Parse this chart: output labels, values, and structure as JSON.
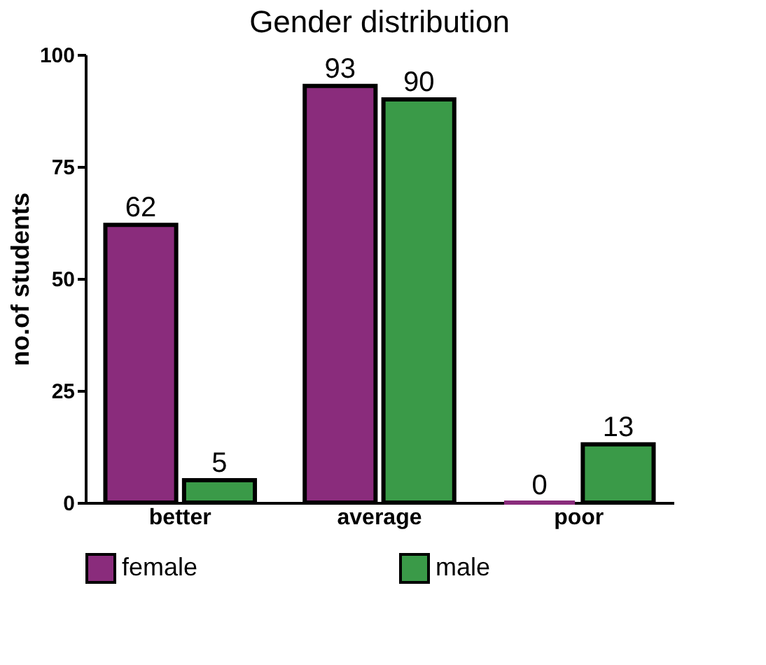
{
  "chart_data": {
    "type": "bar",
    "title": "Gender distribution",
    "ylabel": "no.of students",
    "categories": [
      "better",
      "average",
      "poor"
    ],
    "series": [
      {
        "name": "female",
        "color": "#8a2c7c",
        "values": [
          62,
          93,
          0
        ]
      },
      {
        "name": "male",
        "color": "#3a9a48",
        "values": [
          5,
          90,
          13
        ]
      }
    ],
    "ylim": [
      0,
      100
    ],
    "yticks": [
      0,
      25,
      50,
      75,
      100
    ],
    "data_labels": true,
    "grid": false,
    "legend": "bottom"
  }
}
